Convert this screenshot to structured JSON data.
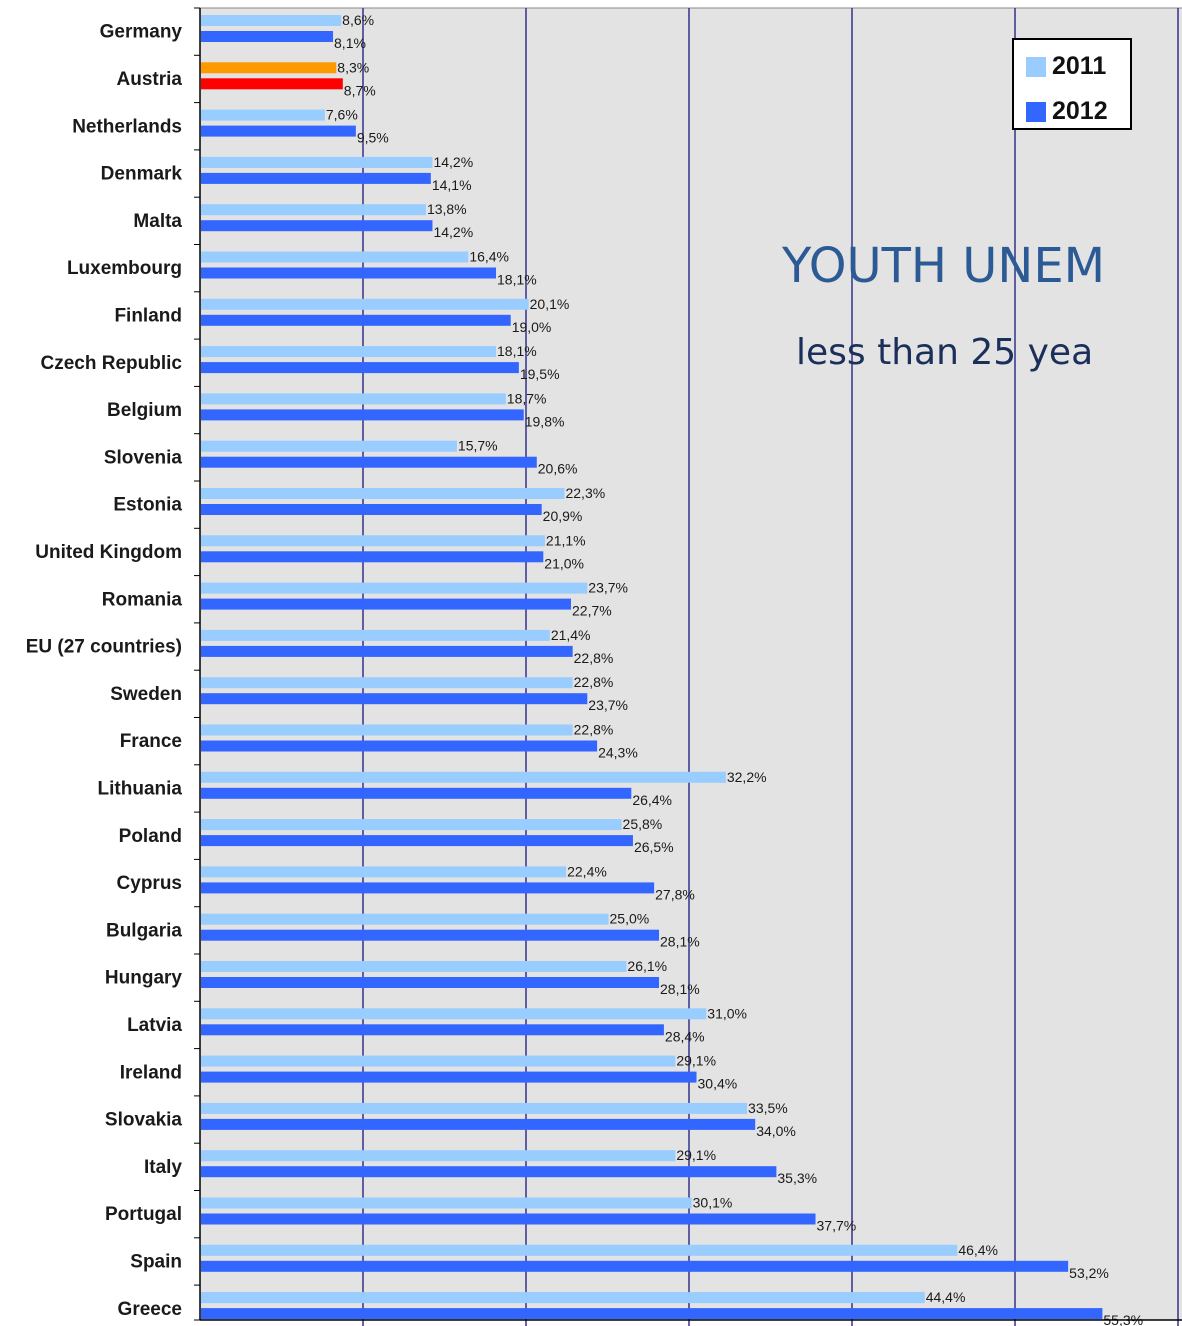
{
  "chart_data": {
    "type": "bar",
    "orientation": "horizontal",
    "title": "YOUTH UNEM",
    "subtitle": "less than 25 yea",
    "categories": [
      "Germany",
      "Austria",
      "Netherlands",
      "Denmark",
      "Malta",
      "Luxembourg",
      "Finland",
      "Czech Republic",
      "Belgium",
      "Slovenia",
      "Estonia",
      "United Kingdom",
      "Romania",
      "EU (27 countries)",
      "Sweden",
      "France",
      "Lithuania",
      "Poland",
      "Cyprus",
      "Bulgaria",
      "Hungary",
      "Latvia",
      "Ireland",
      "Slovakia",
      "Italy",
      "Portugal",
      "Spain",
      "Greece"
    ],
    "series": [
      {
        "name": "2011",
        "color": "#99ccff",
        "values": [
          8.6,
          8.3,
          7.6,
          14.2,
          13.8,
          16.4,
          20.1,
          18.1,
          18.7,
          15.7,
          22.3,
          21.1,
          23.7,
          21.4,
          22.8,
          22.8,
          32.2,
          25.8,
          22.4,
          25.0,
          26.1,
          31.0,
          29.1,
          33.5,
          29.1,
          30.1,
          46.4,
          44.4
        ],
        "labels": [
          "8,6%",
          "8,3%",
          "7,6%",
          "14,2%",
          "13,8%",
          "16,4%",
          "20,1%",
          "18,1%",
          "18,7%",
          "15,7%",
          "22,3%",
          "21,1%",
          "23,7%",
          "21,4%",
          "22,8%",
          "22,8%",
          "32,2%",
          "25,8%",
          "22,4%",
          "25,0%",
          "26,1%",
          "31,0%",
          "29,1%",
          "33,5%",
          "29,1%",
          "30,1%",
          "46,4%",
          "44,4%"
        ]
      },
      {
        "name": "2012",
        "color": "#3366ff",
        "values": [
          8.1,
          8.7,
          9.5,
          14.1,
          14.2,
          18.1,
          19.0,
          19.5,
          19.8,
          20.6,
          20.9,
          21.0,
          22.7,
          22.8,
          23.7,
          24.3,
          26.4,
          26.5,
          27.8,
          28.1,
          28.1,
          28.4,
          30.4,
          34.0,
          35.3,
          37.7,
          53.2,
          55.3
        ],
        "labels": [
          "8,1%",
          "8,7%",
          "9,5%",
          "14,1%",
          "14,2%",
          "18,1%",
          "19,0%",
          "19,5%",
          "19,8%",
          "20,6%",
          "20,9%",
          "21,0%",
          "22,7%",
          "22,8%",
          "23,7%",
          "24,3%",
          "26,4%",
          "26,5%",
          "27,8%",
          "28,1%",
          "28,1%",
          "28,4%",
          "30,4%",
          "34,0%",
          "35,3%",
          "37,7%",
          "53,2%",
          "55,3%"
        ]
      }
    ],
    "highlight": {
      "category": "Austria",
      "colors": {
        "2011": "#ff9900",
        "2012": "#ff0000"
      }
    },
    "xlim": [
      0,
      60
    ],
    "grid": true,
    "gridline_color": "#33338a",
    "plot_background": "#e3e3e3",
    "legend_position": "top-right"
  }
}
